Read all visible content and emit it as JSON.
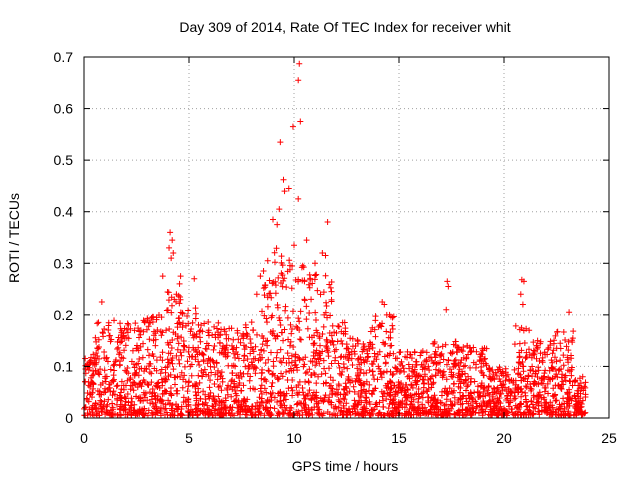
{
  "chart_data": {
    "type": "scatter",
    "title": "Day 309 of 2014, Rate Of TEC Index for receiver whit",
    "xlabel": "GPS time / hours",
    "ylabel": "ROTI / TECUs",
    "xlim": [
      0,
      25
    ],
    "ylim": [
      0,
      0.7
    ],
    "xticks": [
      0,
      5,
      10,
      15,
      20,
      25
    ],
    "xtick_labels": [
      "0",
      "5",
      "10",
      "15",
      "20",
      "25"
    ],
    "yticks": [
      0,
      0.1,
      0.2,
      0.3,
      0.4,
      0.5,
      0.6,
      0.7
    ],
    "ytick_labels": [
      "0",
      "0.1",
      "0.2",
      "0.3",
      "0.4",
      "0.5",
      "0.6",
      "0.7"
    ],
    "grid": true,
    "marker": "+",
    "marker_color": "#ff0000",
    "x_range_covered": [
      0,
      23.9
    ],
    "notable_points": [
      {
        "x": 10.25,
        "y": 0.687
      },
      {
        "x": 10.2,
        "y": 0.655
      },
      {
        "x": 10.3,
        "y": 0.575
      },
      {
        "x": 9.95,
        "y": 0.565
      },
      {
        "x": 9.35,
        "y": 0.535
      },
      {
        "x": 9.5,
        "y": 0.462
      },
      {
        "x": 9.75,
        "y": 0.445
      },
      {
        "x": 10.2,
        "y": 0.425
      },
      {
        "x": 9.55,
        "y": 0.44
      },
      {
        "x": 9.0,
        "y": 0.385
      },
      {
        "x": 9.3,
        "y": 0.405
      },
      {
        "x": 9.2,
        "y": 0.375
      },
      {
        "x": 11.6,
        "y": 0.38
      },
      {
        "x": 10.6,
        "y": 0.345
      },
      {
        "x": 10.0,
        "y": 0.335
      },
      {
        "x": 4.1,
        "y": 0.36
      },
      {
        "x": 4.2,
        "y": 0.345
      },
      {
        "x": 4.05,
        "y": 0.33
      },
      {
        "x": 4.25,
        "y": 0.32
      },
      {
        "x": 4.15,
        "y": 0.31
      },
      {
        "x": 3.75,
        "y": 0.275
      },
      {
        "x": 4.6,
        "y": 0.275
      },
      {
        "x": 5.25,
        "y": 0.27
      },
      {
        "x": 4.55,
        "y": 0.26
      },
      {
        "x": 4.4,
        "y": 0.24
      },
      {
        "x": 4.3,
        "y": 0.23
      },
      {
        "x": 0.85,
        "y": 0.225
      },
      {
        "x": 17.3,
        "y": 0.265
      },
      {
        "x": 17.35,
        "y": 0.255
      },
      {
        "x": 20.85,
        "y": 0.268
      },
      {
        "x": 20.95,
        "y": 0.265
      },
      {
        "x": 20.8,
        "y": 0.24
      },
      {
        "x": 20.9,
        "y": 0.22
      },
      {
        "x": 17.25,
        "y": 0.21
      },
      {
        "x": 23.1,
        "y": 0.205
      },
      {
        "x": 14.2,
        "y": 0.225
      },
      {
        "x": 14.3,
        "y": 0.22
      },
      {
        "x": 14.55,
        "y": 0.2
      },
      {
        "x": 11.35,
        "y": 0.32
      },
      {
        "x": 11.5,
        "y": 0.315
      },
      {
        "x": 11.0,
        "y": 0.3
      },
      {
        "x": 8.75,
        "y": 0.305
      },
      {
        "x": 8.4,
        "y": 0.275
      },
      {
        "x": 8.55,
        "y": 0.285
      }
    ],
    "envelope": [
      {
        "x0": 0.0,
        "x1": 0.5,
        "ymax": 0.13
      },
      {
        "x0": 0.5,
        "x1": 1.0,
        "ymax": 0.19
      },
      {
        "x0": 1.0,
        "x1": 2.0,
        "ymax": 0.19
      },
      {
        "x0": 2.0,
        "x1": 3.0,
        "ymax": 0.19
      },
      {
        "x0": 3.0,
        "x1": 3.7,
        "ymax": 0.2
      },
      {
        "x0": 3.7,
        "x1": 4.7,
        "ymax": 0.25
      },
      {
        "x0": 4.7,
        "x1": 5.5,
        "ymax": 0.22
      },
      {
        "x0": 5.5,
        "x1": 6.5,
        "ymax": 0.19
      },
      {
        "x0": 6.5,
        "x1": 7.5,
        "ymax": 0.18
      },
      {
        "x0": 7.5,
        "x1": 8.2,
        "ymax": 0.19
      },
      {
        "x0": 8.2,
        "x1": 9.0,
        "ymax": 0.27
      },
      {
        "x0": 9.0,
        "x1": 9.8,
        "ymax": 0.33
      },
      {
        "x0": 9.8,
        "x1": 10.6,
        "ymax": 0.3
      },
      {
        "x0": 10.6,
        "x1": 11.8,
        "ymax": 0.28
      },
      {
        "x0": 11.8,
        "x1": 12.6,
        "ymax": 0.19
      },
      {
        "x0": 12.6,
        "x1": 13.6,
        "ymax": 0.16
      },
      {
        "x0": 13.6,
        "x1": 14.8,
        "ymax": 0.2
      },
      {
        "x0": 14.8,
        "x1": 15.6,
        "ymax": 0.13
      },
      {
        "x0": 15.6,
        "x1": 16.6,
        "ymax": 0.13
      },
      {
        "x0": 16.6,
        "x1": 17.8,
        "ymax": 0.15
      },
      {
        "x0": 17.8,
        "x1": 19.2,
        "ymax": 0.14
      },
      {
        "x0": 19.2,
        "x1": 20.4,
        "ymax": 0.1
      },
      {
        "x0": 20.4,
        "x1": 21.2,
        "ymax": 0.19
      },
      {
        "x0": 21.2,
        "x1": 22.3,
        "ymax": 0.15
      },
      {
        "x0": 22.3,
        "x1": 23.3,
        "ymax": 0.17
      },
      {
        "x0": 23.3,
        "x1": 23.9,
        "ymax": 0.08
      }
    ]
  }
}
